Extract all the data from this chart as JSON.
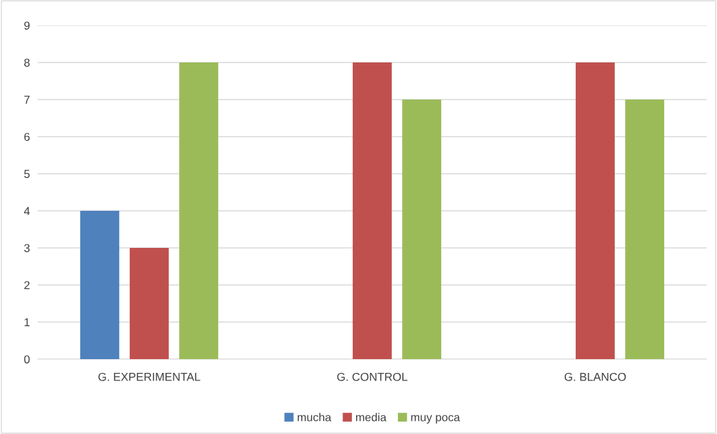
{
  "chart_data": {
    "type": "bar",
    "categories": [
      "G. EXPERIMENTAL",
      "G. CONTROL",
      "G. BLANCO"
    ],
    "series": [
      {
        "name": "mucha",
        "color": "#4f81bd",
        "values": [
          4,
          0,
          0
        ]
      },
      {
        "name": "media",
        "color": "#c0504d",
        "values": [
          3,
          8,
          8
        ]
      },
      {
        "name": "muy poca",
        "color": "#9bbb59",
        "values": [
          8,
          7,
          7
        ]
      }
    ],
    "ylim": [
      0,
      9
    ],
    "yticks": [
      0,
      1,
      2,
      3,
      4,
      5,
      6,
      7,
      8,
      9
    ],
    "grid": "y",
    "legend": "bottom"
  }
}
